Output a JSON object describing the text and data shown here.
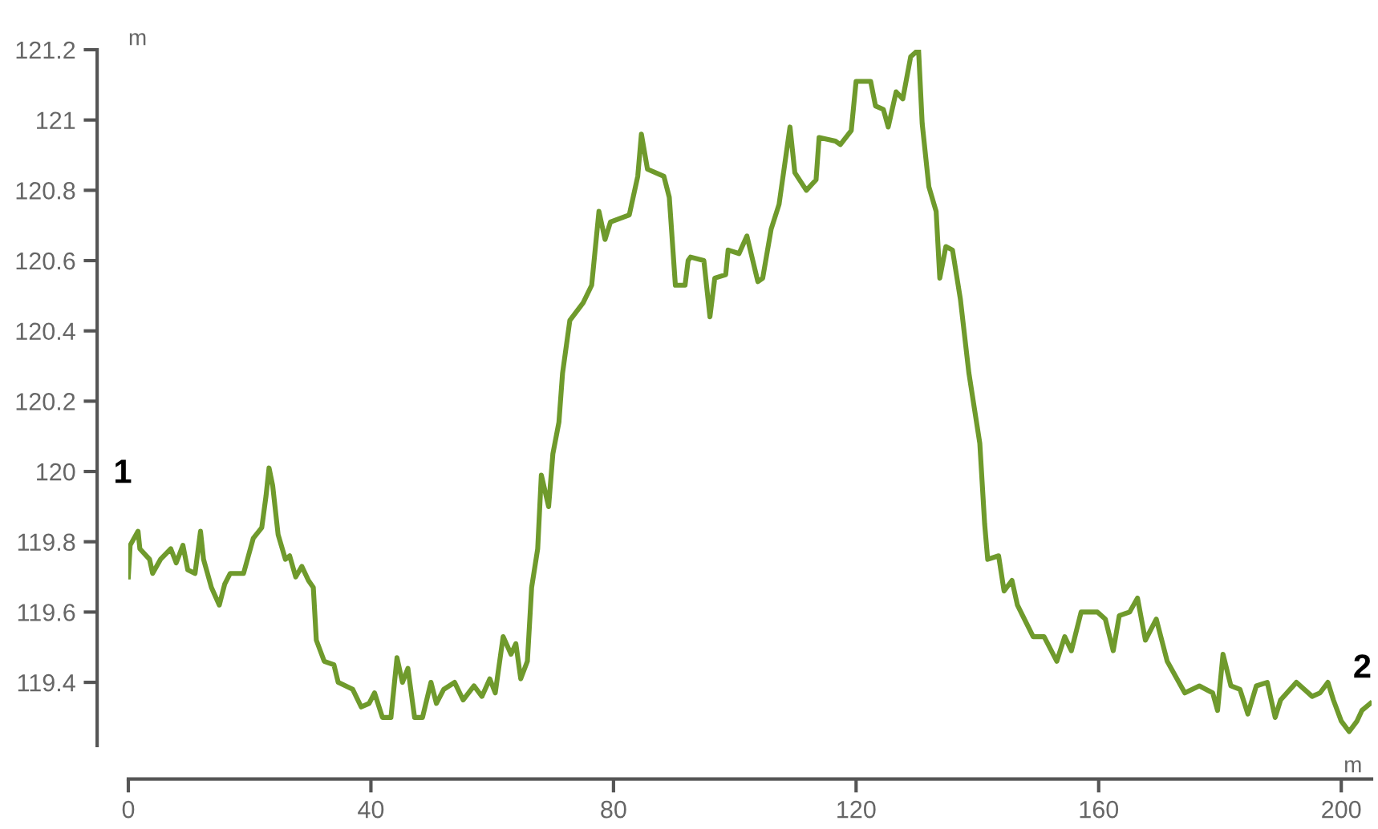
{
  "chart_data": {
    "type": "line",
    "xlabel": "m",
    "ylabel": "m",
    "annotations": [
      "1",
      "2"
    ],
    "xlim": [
      0,
      205
    ],
    "ylim": [
      119.22,
      121.2
    ],
    "xticks": [
      0,
      40,
      80,
      120,
      160,
      200
    ],
    "yticks": [
      119.4,
      119.6,
      119.8,
      120,
      120.2,
      120.4,
      120.6,
      120.8,
      121,
      121.2
    ],
    "grid": false,
    "legend": false,
    "marker": "none",
    "line_style": "solid",
    "series": [
      {
        "color": "#6f9a2c",
        "x": [
          0,
          0.3,
          1.6,
          1.9,
          3.5,
          4,
          5.3,
          7,
          7.9,
          9,
          9.8,
          11,
          11.9,
          12.4,
          13.7,
          15,
          15.9,
          16.8,
          19,
          19.8,
          20.6,
          22,
          22.7,
          23.2,
          23.8,
          24.7,
          25.9,
          26.6,
          27.6,
          28.6,
          29.7,
          30.5,
          31,
          32.3,
          33.9,
          34.6,
          37,
          38.4,
          39.7,
          40.6,
          41.9,
          43.3,
          44.3,
          45.2,
          46.1,
          47.2,
          48.5,
          49.9,
          50.8,
          52,
          53.8,
          55.2,
          57,
          58.3,
          59.6,
          60.5,
          61.8,
          63.1,
          63.9,
          64.7,
          65.8,
          66.5,
          67.5,
          68.1,
          69.3,
          70,
          71,
          71.6,
          72.8,
          75,
          76.4,
          77.6,
          78.6,
          79.5,
          82.6,
          84,
          84.6,
          85.6,
          88.3,
          89.2,
          90.2,
          91.8,
          92.3,
          92.7,
          94.9,
          95.9,
          96.7,
          98.5,
          98.9,
          100.7,
          102,
          103.8,
          104.6,
          106,
          107.3,
          109.1,
          109.9,
          111.8,
          113.4,
          113.9,
          116.6,
          117.4,
          119.2,
          120,
          122.4,
          123.2,
          124.5,
          125.3,
          126.6,
          127.7,
          129,
          130.3,
          130.9,
          132,
          133.2,
          133.8,
          134.8,
          135.9,
          137.2,
          138.6,
          140.4,
          141.2,
          141.7,
          143.5,
          144.4,
          145.7,
          146.6,
          149.2,
          151,
          153.1,
          154.4,
          155.5,
          157.1,
          159.8,
          161.1,
          162.4,
          163.4,
          165.1,
          166.4,
          167.7,
          169.5,
          171.3,
          174.2,
          176.6,
          178.8,
          179.6,
          180.5,
          181.8,
          183.3,
          184.6,
          186,
          187.8,
          189.1,
          190,
          192.6,
          195.2,
          196.5,
          197.8,
          198.7,
          200,
          201.3,
          202.6,
          203.4,
          204.8
        ],
        "values": [
          119.7,
          119.79,
          119.83,
          119.78,
          119.75,
          119.71,
          119.75,
          119.78,
          119.74,
          119.79,
          119.72,
          119.71,
          119.83,
          119.75,
          119.67,
          119.62,
          119.68,
          119.71,
          119.71,
          119.76,
          119.81,
          119.84,
          119.93,
          120.01,
          119.96,
          119.82,
          119.75,
          119.76,
          119.7,
          119.73,
          119.69,
          119.67,
          119.52,
          119.46,
          119.45,
          119.4,
          119.38,
          119.33,
          119.34,
          119.37,
          119.3,
          119.3,
          119.47,
          119.4,
          119.44,
          119.3,
          119.3,
          119.4,
          119.34,
          119.38,
          119.4,
          119.35,
          119.39,
          119.36,
          119.41,
          119.37,
          119.53,
          119.48,
          119.51,
          119.41,
          119.46,
          119.67,
          119.78,
          119.99,
          119.9,
          120.05,
          120.14,
          120.28,
          120.43,
          120.48,
          120.53,
          120.74,
          120.66,
          120.71,
          120.73,
          120.84,
          120.96,
          120.86,
          120.84,
          120.78,
          120.53,
          120.53,
          120.6,
          120.61,
          120.6,
          120.44,
          120.55,
          120.56,
          120.63,
          120.62,
          120.67,
          120.54,
          120.55,
          120.69,
          120.76,
          120.98,
          120.85,
          120.8,
          120.83,
          120.95,
          120.94,
          120.93,
          120.97,
          121.11,
          121.11,
          121.04,
          121.03,
          120.98,
          121.08,
          121.06,
          121.18,
          121.2,
          120.99,
          120.81,
          120.74,
          120.55,
          120.64,
          120.63,
          120.49,
          120.28,
          120.08,
          119.85,
          119.75,
          119.76,
          119.66,
          119.69,
          119.62,
          119.53,
          119.53,
          119.46,
          119.53,
          119.49,
          119.6,
          119.6,
          119.58,
          119.49,
          119.59,
          119.6,
          119.64,
          119.52,
          119.58,
          119.46,
          119.37,
          119.39,
          119.37,
          119.32,
          119.48,
          119.39,
          119.38,
          119.31,
          119.39,
          119.4,
          119.3,
          119.35,
          119.4,
          119.36,
          119.37,
          119.4,
          119.35,
          119.29,
          119.26,
          119.29,
          119.32,
          119.34
        ]
      }
    ]
  }
}
